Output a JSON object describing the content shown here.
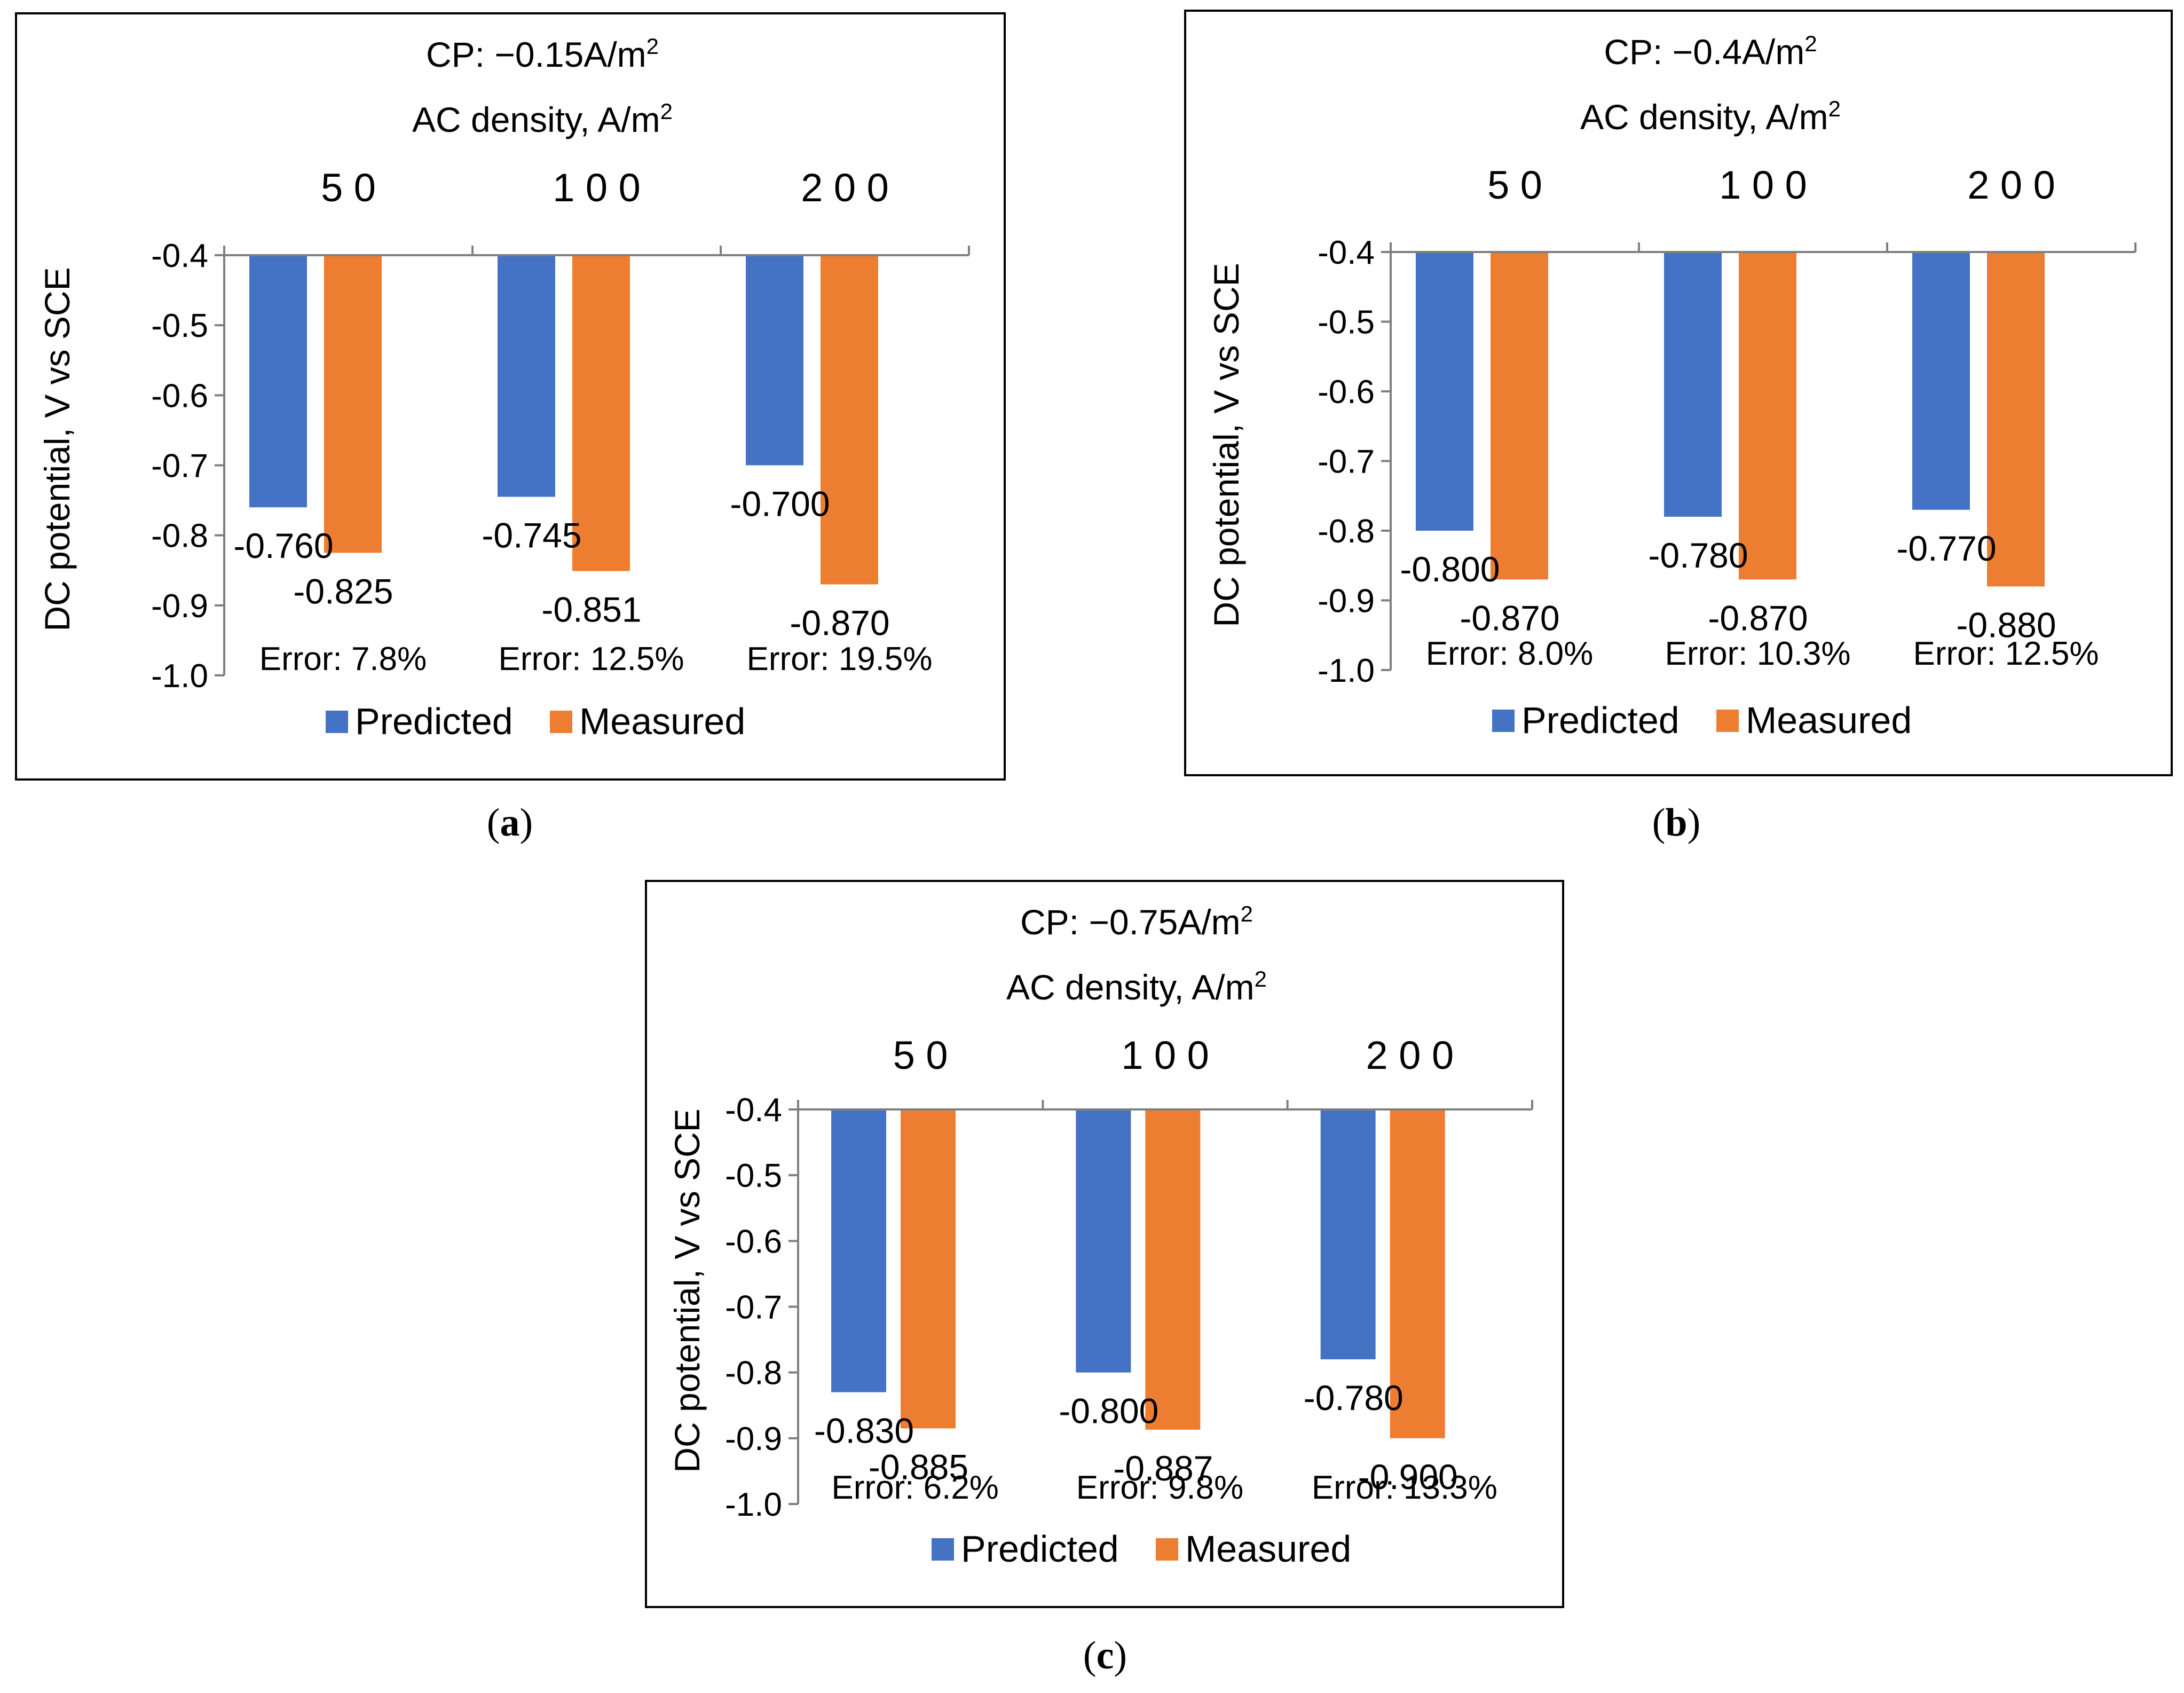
{
  "colors": {
    "predicted": "#4472C4",
    "measured": "#ED7D31",
    "frame": "#000000",
    "axis": "#7f7f7f"
  },
  "chart_data": [
    {
      "type": "bar",
      "panel_label": "a",
      "title": "CP: −0.15A/m",
      "title_superscript": "2",
      "xlabel": "AC density, A/m",
      "xlabel_superscript": "2",
      "ylabel": "DC potential,  V vs SCE",
      "categories": [
        "5 0",
        "1 0 0",
        "2 0 0"
      ],
      "category_values": [
        50,
        100,
        200
      ],
      "y_baseline": -0.4,
      "ylim": [
        -1.0,
        -0.4
      ],
      "yticks": [
        "-0.4",
        "-0.5",
        "-0.6",
        "-0.7",
        "-0.8",
        "-0.9",
        "-1.0"
      ],
      "series": [
        {
          "name": "Predicted",
          "values": [
            -0.76,
            -0.745,
            -0.7
          ],
          "labels": [
            "-0.760",
            "-0.745",
            "-0.700"
          ]
        },
        {
          "name": "Measured",
          "values": [
            -0.825,
            -0.851,
            -0.87
          ],
          "labels": [
            "-0.825",
            "-0.851",
            "-0.870"
          ]
        }
      ],
      "errors": [
        "Error: 7.8%",
        "Error: 12.5%",
        "Error: 19.5%"
      ],
      "legend": [
        "Predicted",
        "Measured"
      ],
      "legend_position": "bottom"
    },
    {
      "type": "bar",
      "panel_label": "b",
      "title": "CP: −0.4A/m",
      "title_superscript": "2",
      "xlabel": "AC density, A/m",
      "xlabel_superscript": "2",
      "ylabel": "DC potential,  V vs SCE",
      "categories": [
        "5 0",
        "1 0 0",
        "2 0 0"
      ],
      "category_values": [
        50,
        100,
        200
      ],
      "y_baseline": -0.4,
      "ylim": [
        -1.0,
        -0.4
      ],
      "yticks": [
        "-0.4",
        "-0.5",
        "-0.6",
        "-0.7",
        "-0.8",
        "-0.9",
        "-1.0"
      ],
      "series": [
        {
          "name": "Predicted",
          "values": [
            -0.8,
            -0.78,
            -0.77
          ],
          "labels": [
            "-0.800",
            "-0.780",
            "-0.770"
          ]
        },
        {
          "name": "Measured",
          "values": [
            -0.87,
            -0.87,
            -0.88
          ],
          "labels": [
            "-0.870",
            "-0.870",
            "-0.880"
          ]
        }
      ],
      "errors": [
        "Error: 8.0%",
        "Error: 10.3%",
        "Error: 12.5%"
      ],
      "legend": [
        "Predicted",
        "Measured"
      ],
      "legend_position": "bottom"
    },
    {
      "type": "bar",
      "panel_label": "c",
      "title": "CP: −0.75A/m",
      "title_superscript": "2",
      "xlabel": "AC density, A/m",
      "xlabel_superscript": "2",
      "ylabel": "DC potential,  V vs SCE",
      "categories": [
        "5 0",
        "1 0 0",
        "2 0 0"
      ],
      "category_values": [
        50,
        100,
        200
      ],
      "y_baseline": -0.4,
      "ylim": [
        -1.0,
        -0.4
      ],
      "yticks": [
        "-0.4",
        "-0.5",
        "-0.6",
        "-0.7",
        "-0.8",
        "-0.9",
        "-1.0"
      ],
      "series": [
        {
          "name": "Predicted",
          "values": [
            -0.83,
            -0.8,
            -0.78
          ],
          "labels": [
            "-0.830",
            "-0.800",
            "-0.780"
          ]
        },
        {
          "name": "Measured",
          "values": [
            -0.885,
            -0.887,
            -0.9
          ],
          "labels": [
            "-0.885",
            "-0.887",
            "-0.900"
          ]
        }
      ],
      "errors": [
        "Error: 6.2%",
        "Error: 9.8%",
        "Error: 13.3%"
      ],
      "legend": [
        "Predicted",
        "Measured"
      ],
      "legend_position": "bottom"
    }
  ]
}
